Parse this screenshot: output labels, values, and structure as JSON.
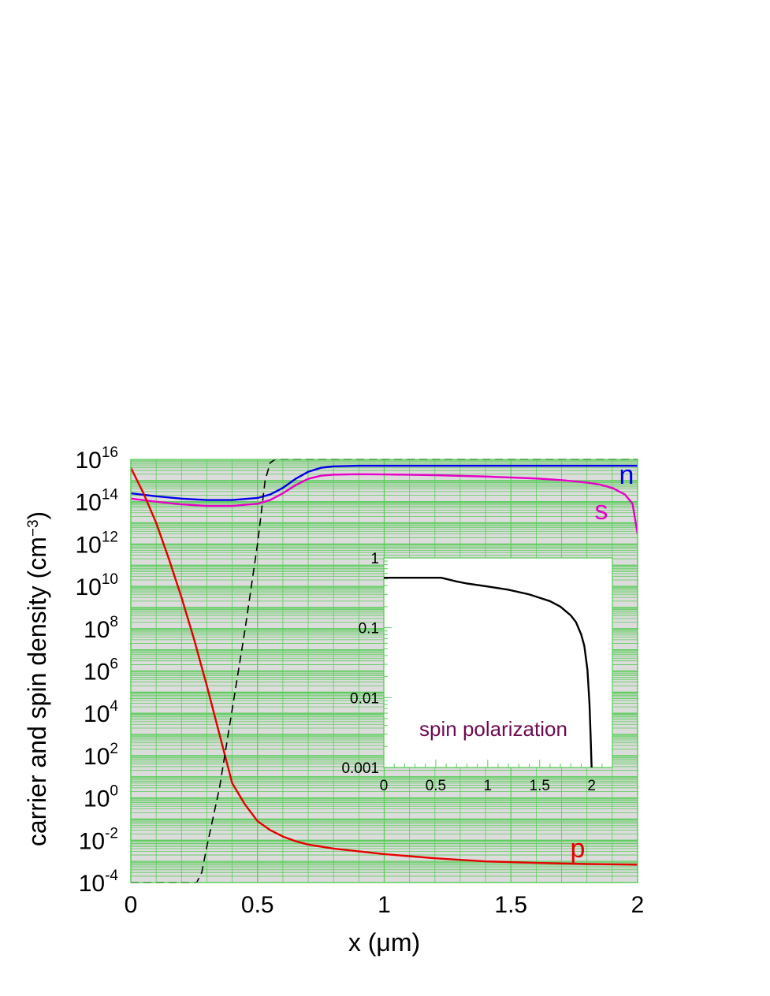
{
  "chart_data": [
    {
      "type": "line",
      "title": "",
      "xlabel": "x (μm)",
      "ylabel": "carrier and spin density (cm⁻³)",
      "ylabel_main": "carrier and spin density (cm",
      "ylabel_sup": "−3",
      "ylabel_close": ")",
      "xscale": "linear",
      "yscale": "log",
      "xlim": [
        0,
        2
      ],
      "ylim": [
        0.0001,
        1e+16
      ],
      "xticks": [
        "0",
        "0.5",
        "1",
        "1.5",
        "2"
      ],
      "yticks": [
        {
          "base": "10",
          "exp": "16"
        },
        {
          "base": "10",
          "exp": "14"
        },
        {
          "base": "10",
          "exp": "12"
        },
        {
          "base": "10",
          "exp": "10"
        },
        {
          "base": "10",
          "exp": "8"
        },
        {
          "base": "10",
          "exp": "6"
        },
        {
          "base": "10",
          "exp": "4"
        },
        {
          "base": "10",
          "exp": "2"
        },
        {
          "base": "10",
          "exp": "0"
        },
        {
          "base": "10",
          "exp": "-2"
        },
        {
          "base": "10",
          "exp": "-4"
        }
      ],
      "grid": true,
      "background_color": "#dcdcdc",
      "grid_color": "#5ccd5c",
      "series": [
        {
          "name": "n",
          "color": "#0000e6",
          "style": "solid",
          "x": [
            0,
            0.1,
            0.2,
            0.3,
            0.4,
            0.5,
            0.55,
            0.6,
            0.65,
            0.7,
            0.75,
            0.8,
            0.9,
            1.0,
            1.5,
            2.0
          ],
          "y": [
            250000000000000.0,
            180000000000000.0,
            140000000000000.0,
            120000000000000.0,
            120000000000000.0,
            150000000000000.0,
            220000000000000.0,
            450000000000000.0,
            1200000000000000.0,
            2600000000000000.0,
            4000000000000000.0,
            4700000000000000.0,
            5000000000000000.0,
            5000000000000000.0,
            5000000000000000.0,
            5000000000000000.0
          ]
        },
        {
          "name": "s",
          "color": "#e600c8",
          "style": "solid",
          "x": [
            0,
            0.1,
            0.2,
            0.3,
            0.4,
            0.5,
            0.55,
            0.6,
            0.65,
            0.7,
            0.75,
            0.8,
            0.9,
            1.0,
            1.2,
            1.4,
            1.6,
            1.7,
            1.8,
            1.85,
            1.9,
            1.95,
            1.98,
            2.0
          ],
          "y": [
            140000000000000.0,
            100000000000000.0,
            75000000000000.0,
            63000000000000.0,
            63000000000000.0,
            80000000000000.0,
            120000000000000.0,
            250000000000000.0,
            600000000000000.0,
            1200000000000000.0,
            1700000000000000.0,
            1900000000000000.0,
            2000000000000000.0,
            1950000000000000.0,
            1800000000000000.0,
            1550000000000000.0,
            1250000000000000.0,
            1050000000000000.0,
            800000000000000.0,
            650000000000000.0,
            450000000000000.0,
            220000000000000.0,
            80000000000000.0,
            3000000000000.0
          ]
        },
        {
          "name": "p",
          "color": "#e60000",
          "style": "solid",
          "x": [
            0,
            0.05,
            0.1,
            0.15,
            0.2,
            0.25,
            0.3,
            0.35,
            0.4,
            0.45,
            0.5,
            0.55,
            0.6,
            0.65,
            0.7,
            0.8,
            1.0,
            1.2,
            1.4,
            1.6,
            1.8,
            2.0
          ],
          "y": [
            4000000000000000.0,
            250000000000000.0,
            10000000000000.0,
            200000000000.0,
            3000000000.0,
            30000000.0,
            200000.0,
            1000.0,
            5,
            0.5,
            0.08,
            0.03,
            0.015,
            0.009,
            0.0062,
            0.004,
            0.0022,
            0.0014,
            0.001,
            0.00085,
            0.00075,
            0.0007
          ]
        },
        {
          "color": "#000000",
          "style": "dashed",
          "x": [
            0,
            0.26,
            0.28,
            0.3,
            0.35,
            0.4,
            0.45,
            0.5,
            0.53,
            0.55,
            0.57,
            0.6,
            1.0,
            2.0
          ],
          "y": [
            0.0001,
            0.0001,
            0.0003,
            0.005,
            3,
            15000.0,
            80000000.0,
            1000000000000.0,
            1000000000000000.0,
            7000000000000000.0,
            1e+16,
            1e+16,
            1e+16,
            1e+16
          ]
        }
      ]
    },
    {
      "type": "line",
      "title": "spin polarization",
      "xscale": "linear",
      "yscale": "log",
      "xlim": [
        0,
        2.2
      ],
      "ylim": [
        0.001,
        1
      ],
      "xticks": [
        "0",
        "0.5",
        "1",
        "1.5",
        "2"
      ],
      "yticks": [
        "1",
        "0.1",
        "0.01",
        "0.001"
      ],
      "grid": false,
      "series": [
        {
          "color": "#000000",
          "style": "solid",
          "x": [
            0,
            0.55,
            0.6,
            0.7,
            0.8,
            1.0,
            1.2,
            1.4,
            1.6,
            1.7,
            1.8,
            1.85,
            1.9,
            1.93,
            1.96,
            1.98,
            1.99,
            2.0
          ],
          "y": [
            0.52,
            0.52,
            0.5,
            0.46,
            0.43,
            0.39,
            0.35,
            0.3,
            0.24,
            0.2,
            0.15,
            0.12,
            0.08,
            0.055,
            0.025,
            0.008,
            0.003,
            0.001
          ]
        }
      ],
      "title_color": "#6e0a4f"
    }
  ]
}
